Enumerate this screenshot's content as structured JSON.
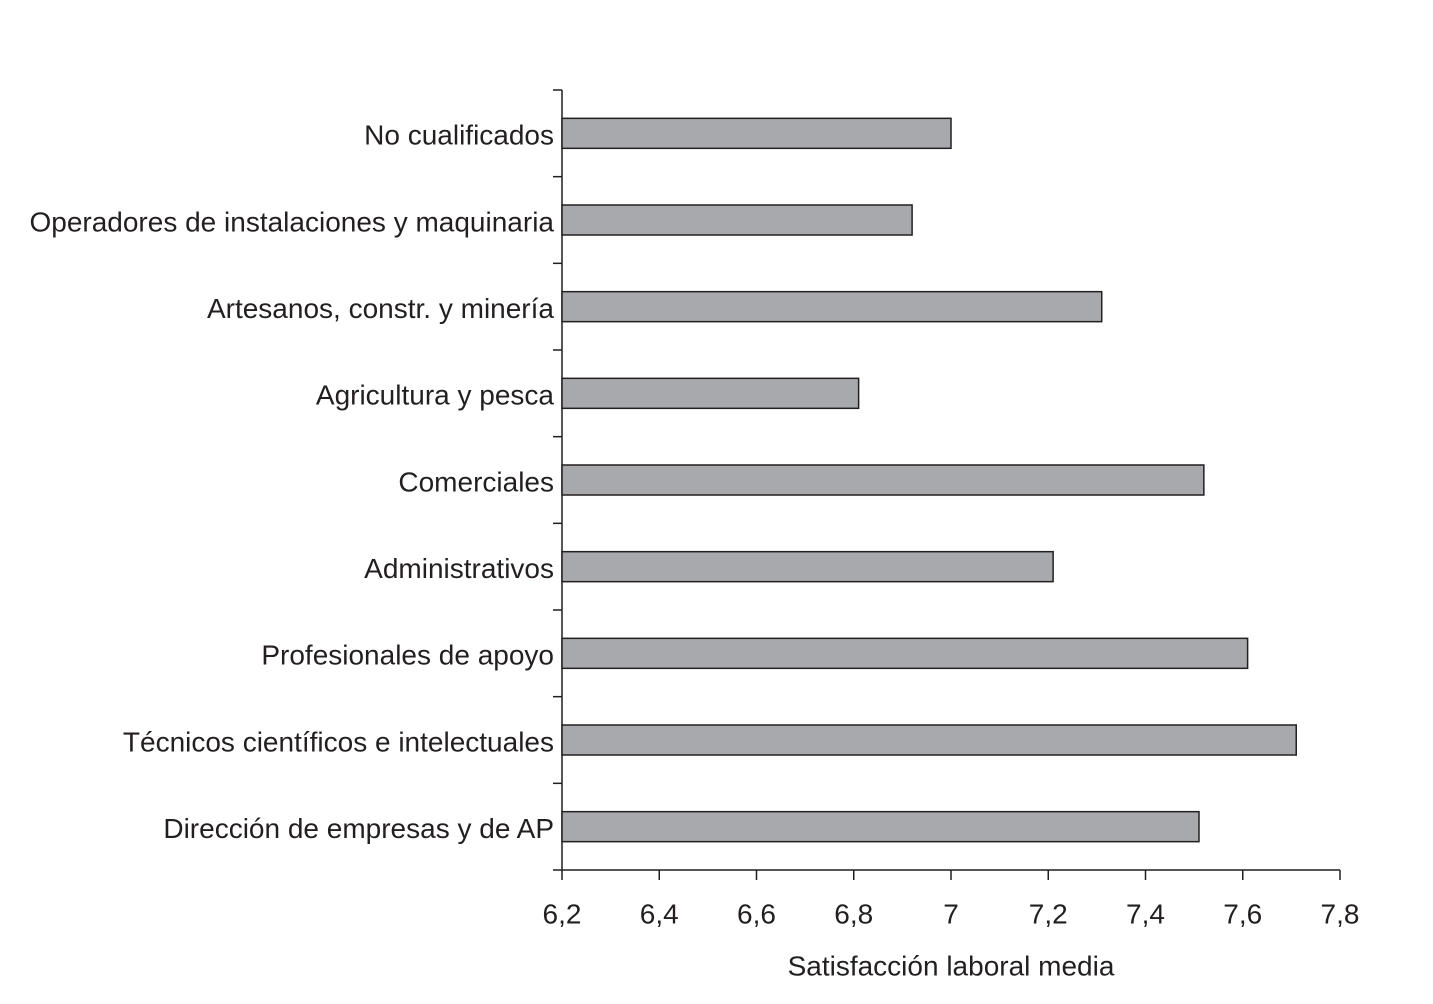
{
  "chart_data": {
    "type": "bar",
    "orientation": "horizontal",
    "xlabel": "Satisfacción laboral media",
    "categories": [
      "No cualificados",
      "Operadores de instalaciones y maquinaria",
      "Artesanos, constr. y minería",
      "Agricultura y pesca",
      "Comerciales",
      "Administrativos",
      "Profesionales de apoyo",
      "Técnicos científicos e intelectuales",
      "Dirección de empresas y de AP"
    ],
    "values": [
      7.0,
      6.92,
      7.31,
      6.81,
      7.52,
      7.21,
      7.61,
      7.71,
      7.51
    ],
    "color": "#a7a9ac",
    "xlim": [
      6.2,
      7.8
    ],
    "xticks": [
      {
        "value": 6.2,
        "label": "6,2"
      },
      {
        "value": 6.4,
        "label": "6,4"
      },
      {
        "value": 6.6,
        "label": "6,6"
      },
      {
        "value": 6.8,
        "label": "6,8"
      },
      7,
      {
        "value": 7.2,
        "label": "7,2"
      },
      {
        "value": 7.4,
        "label": "7,4"
      },
      {
        "value": 7.6,
        "label": "7,6"
      },
      {
        "value": 7.8,
        "label": "7,8"
      }
    ],
    "grid": false
  }
}
